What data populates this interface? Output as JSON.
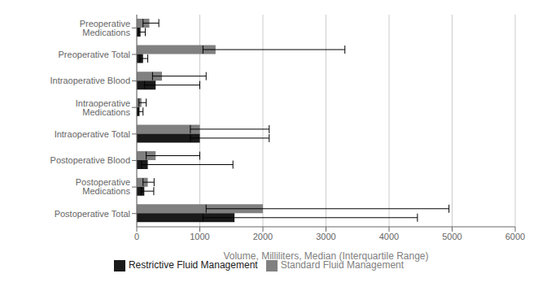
{
  "chart_data": {
    "type": "bar",
    "orientation": "horizontal",
    "categories": [
      "Preoperative Medications",
      "Preoperative Total",
      "Intraoperative Blood",
      "Intraoperative Medications",
      "Intraoperative Total",
      "Postoperative Blood",
      "Postoperative Medications",
      "Postoperative Total"
    ],
    "series": [
      {
        "name": "Standard Fluid Management",
        "color": "#808080",
        "values": [
          200,
          1250,
          400,
          75,
          1000,
          300,
          175,
          2000
        ],
        "err_low": [
          100,
          200,
          150,
          40,
          150,
          150,
          75,
          900
        ],
        "err_high": [
          150,
          2050,
          700,
          75,
          1100,
          700,
          100,
          2950
        ]
      },
      {
        "name": "Restrictive Fluid Management",
        "color": "#1a1a1a",
        "values": [
          60,
          100,
          300,
          45,
          1000,
          175,
          120,
          1550
        ],
        "err_low": [
          35,
          50,
          175,
          25,
          150,
          100,
          50,
          500
        ],
        "err_high": [
          75,
          75,
          700,
          55,
          1100,
          1350,
          150,
          2900
        ]
      }
    ],
    "xlabel": "Volume, Milliliters, Median (Interquartile Range)",
    "xlim": [
      0,
      6000
    ],
    "xticks": [
      0,
      1000,
      2000,
      3000,
      4000,
      5000,
      6000
    ],
    "grid": true,
    "legend": "bottom"
  }
}
